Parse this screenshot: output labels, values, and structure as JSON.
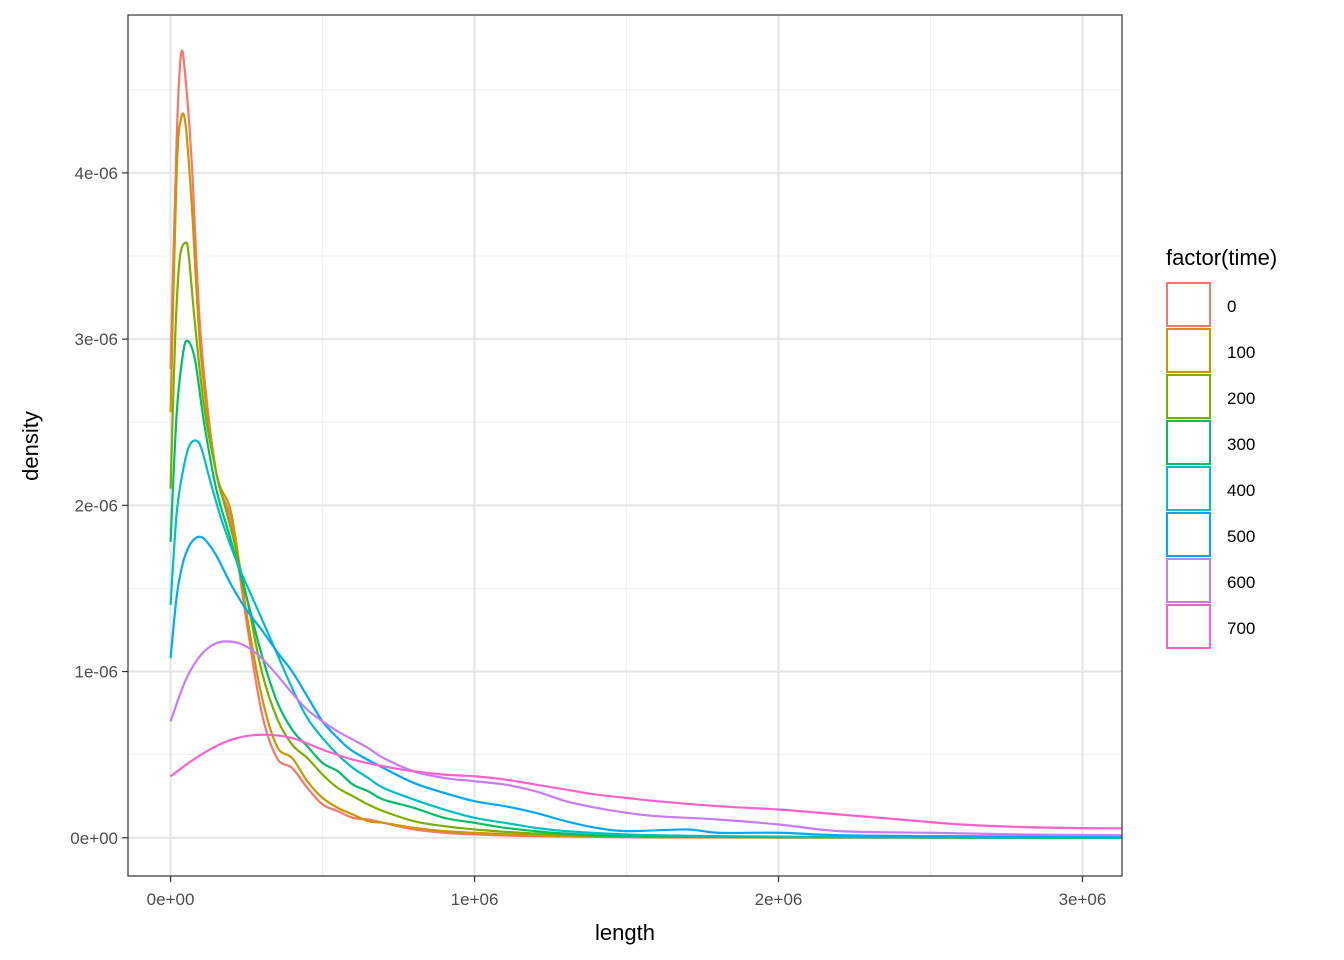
{
  "chart_data": {
    "type": "line",
    "title": "",
    "xlabel": "length",
    "ylabel": "density",
    "xlim": [
      -140000,
      3130000
    ],
    "ylim": [
      -2.3e-07,
      4.95e-06
    ],
    "x_ticks": [
      0,
      1000000,
      2000000,
      3000000
    ],
    "x_tick_labels": [
      "0e+00",
      "1e+06",
      "2e+06",
      "3e+06"
    ],
    "y_ticks": [
      0,
      1e-06,
      2e-06,
      3e-06,
      4e-06
    ],
    "y_tick_labels": [
      "0e+00",
      "1e-06",
      "2e-06",
      "3e-06",
      "4e-06"
    ],
    "grid": true,
    "legend": {
      "title": "factor(time)",
      "position": "right"
    },
    "series": [
      {
        "name": "0",
        "color": "#F8766D",
        "x": [
          0,
          20000,
          35000,
          50000,
          70000,
          100000,
          150000,
          200000,
          250000,
          300000,
          350000,
          400000,
          450000,
          500000,
          550000,
          600000,
          650000,
          700000,
          800000,
          900000,
          1000000,
          1200000,
          1500000,
          2000000,
          3130000
        ],
        "y": [
          2.82e-06,
          4.2e-06,
          4.72e-06,
          4.55e-06,
          4.05e-06,
          3e-06,
          2.2e-06,
          1.9e-06,
          1.3e-06,
          7.5e-07,
          4.8e-07,
          4.2e-07,
          3e-07,
          2e-07,
          1.6e-07,
          1.2e-07,
          1.1e-07,
          9e-08,
          5e-08,
          3e-08,
          2e-08,
          1e-08,
          3e-09,
          1e-09,
          0.0
        ]
      },
      {
        "name": "100",
        "color": "#CD9600",
        "x": [
          0,
          20000,
          35000,
          50000,
          70000,
          100000,
          150000,
          200000,
          250000,
          300000,
          350000,
          400000,
          450000,
          500000,
          550000,
          600000,
          650000,
          700000,
          800000,
          900000,
          1000000,
          1200000,
          1500000,
          2000000,
          3130000
        ],
        "y": [
          2.56e-06,
          4e-06,
          4.33e-06,
          4.28e-06,
          3.8e-06,
          2.9e-06,
          2.2e-06,
          1.95e-06,
          1.35e-06,
          8.5e-07,
          5.5e-07,
          4.8e-07,
          3.4e-07,
          2.4e-07,
          1.8e-07,
          1.4e-07,
          1e-07,
          9e-08,
          6e-08,
          4e-08,
          3e-08,
          1.5e-08,
          5e-09,
          2e-09,
          0.0
        ]
      },
      {
        "name": "200",
        "color": "#7CAE00",
        "x": [
          0,
          15000,
          30000,
          50000,
          60000,
          80000,
          110000,
          150000,
          200000,
          250000,
          300000,
          350000,
          400000,
          450000,
          500000,
          550000,
          600000,
          650000,
          700000,
          800000,
          900000,
          1000000,
          1200000,
          1500000,
          2000000,
          3130000
        ],
        "y": [
          2.1e-06,
          3e-06,
          3.48e-06,
          3.58e-06,
          3.5e-06,
          3.1e-06,
          2.6e-06,
          2.2e-06,
          1.85e-06,
          1.45e-06,
          1e-06,
          7.2e-07,
          5.6e-07,
          4.8e-07,
          3.8e-07,
          3e-07,
          2.5e-07,
          2e-07,
          1.6e-07,
          1e-07,
          7e-08,
          5e-08,
          2.5e-08,
          8e-09,
          3e-09,
          0.0
        ]
      },
      {
        "name": "300",
        "color": "#00BE67",
        "x": [
          0,
          20000,
          40000,
          55000,
          80000,
          110000,
          150000,
          200000,
          250000,
          300000,
          350000,
          400000,
          450000,
          500000,
          550000,
          600000,
          650000,
          700000,
          800000,
          900000,
          1000000,
          1100000,
          1200000,
          1300000,
          1500000,
          2000000,
          3130000
        ],
        "y": [
          1.78e-06,
          2.55e-06,
          2.9e-06,
          2.99e-06,
          2.88e-06,
          2.5e-06,
          2.1e-06,
          1.78e-06,
          1.45e-06,
          1.1e-06,
          8.2e-07,
          6.5e-07,
          5.5e-07,
          4.5e-07,
          4e-07,
          3.2e-07,
          2.8e-07,
          2.3e-07,
          1.8e-07,
          1.2e-07,
          9e-08,
          6e-08,
          4e-08,
          2.5e-08,
          1e-08,
          4e-09,
          0.0
        ]
      },
      {
        "name": "400",
        "color": "#00BFC4",
        "x": [
          0,
          20000,
          40000,
          60000,
          80000,
          100000,
          130000,
          170000,
          220000,
          280000,
          340000,
          400000,
          450000,
          500000,
          550000,
          600000,
          650000,
          700000,
          800000,
          900000,
          1000000,
          1100000,
          1200000,
          1300000,
          1500000,
          1800000,
          2200000,
          3130000
        ],
        "y": [
          1.4e-06,
          1.95e-06,
          2.2e-06,
          2.35e-06,
          2.39e-06,
          2.35e-06,
          2.15e-06,
          1.9e-06,
          1.65e-06,
          1.4e-06,
          1.15e-06,
          9e-07,
          7.2e-07,
          6e-07,
          5e-07,
          4.2e-07,
          3.6e-07,
          3e-07,
          2.3e-07,
          1.7e-07,
          1.2e-07,
          9e-08,
          6e-08,
          4e-08,
          2e-08,
          1e-08,
          5e-09,
          2e-09
        ]
      },
      {
        "name": "500",
        "color": "#00A9FF",
        "x": [
          0,
          20000,
          40000,
          60000,
          80000,
          100000,
          120000,
          150000,
          200000,
          250000,
          300000,
          350000,
          400000,
          450000,
          500000,
          550000,
          600000,
          700000,
          800000,
          900000,
          1000000,
          1100000,
          1200000,
          1300000,
          1400000,
          1500000,
          1700000,
          1800000,
          2000000,
          2200000,
          2500000,
          3130000
        ],
        "y": [
          1.08e-06,
          1.45e-06,
          1.65e-06,
          1.75e-06,
          1.8e-06,
          1.81e-06,
          1.78e-06,
          1.7e-06,
          1.52e-06,
          1.37e-06,
          1.25e-06,
          1.12e-06,
          1e-06,
          8.5e-07,
          7e-07,
          6e-07,
          5.2e-07,
          4.2e-07,
          3.3e-07,
          2.7e-07,
          2.2e-07,
          1.9e-07,
          1.5e-07,
          1e-07,
          6e-08,
          4e-08,
          5e-08,
          3e-08,
          3e-08,
          1.5e-08,
          1e-08,
          5e-09
        ]
      },
      {
        "name": "600",
        "color": "#C77CFF",
        "x": [
          0,
          50000,
          100000,
          150000,
          200000,
          250000,
          300000,
          350000,
          400000,
          450000,
          500000,
          550000,
          600000,
          650000,
          700000,
          800000,
          900000,
          1000000,
          1100000,
          1200000,
          1300000,
          1400000,
          1500000,
          1600000,
          1800000,
          2000000,
          2200000,
          2500000,
          2800000,
          3130000
        ],
        "y": [
          7e-07,
          9.5e-07,
          1.1e-06,
          1.17e-06,
          1.18e-06,
          1.15e-06,
          1.08e-06,
          9.8e-07,
          8.7e-07,
          7.7e-07,
          7e-07,
          6.4e-07,
          5.9e-07,
          5.4e-07,
          4.8e-07,
          4e-07,
          3.6e-07,
          3.4e-07,
          3.2e-07,
          2.8e-07,
          2.2e-07,
          1.8e-07,
          1.5e-07,
          1.3e-07,
          1.1e-07,
          8e-08,
          4e-08,
          3e-08,
          2e-08,
          1.5e-08
        ]
      },
      {
        "name": "700",
        "color": "#FF61CC",
        "x": [
          0,
          100000,
          200000,
          300000,
          400000,
          500000,
          600000,
          700000,
          800000,
          900000,
          1000000,
          1100000,
          1200000,
          1300000,
          1400000,
          1500000,
          1600000,
          1800000,
          2000000,
          2200000,
          2400000,
          2600000,
          2800000,
          3000000,
          3130000
        ],
        "y": [
          3.7e-07,
          5e-07,
          5.9e-07,
          6.2e-07,
          6e-07,
          5.3e-07,
          4.7e-07,
          4.3e-07,
          4e-07,
          3.8e-07,
          3.7e-07,
          3.5e-07,
          3.2e-07,
          2.9e-07,
          2.6e-07,
          2.4e-07,
          2.2e-07,
          1.9e-07,
          1.7e-07,
          1.4e-07,
          1.1e-07,
          8e-08,
          6.5e-08,
          5.8e-08,
          5.7e-08
        ]
      }
    ]
  }
}
